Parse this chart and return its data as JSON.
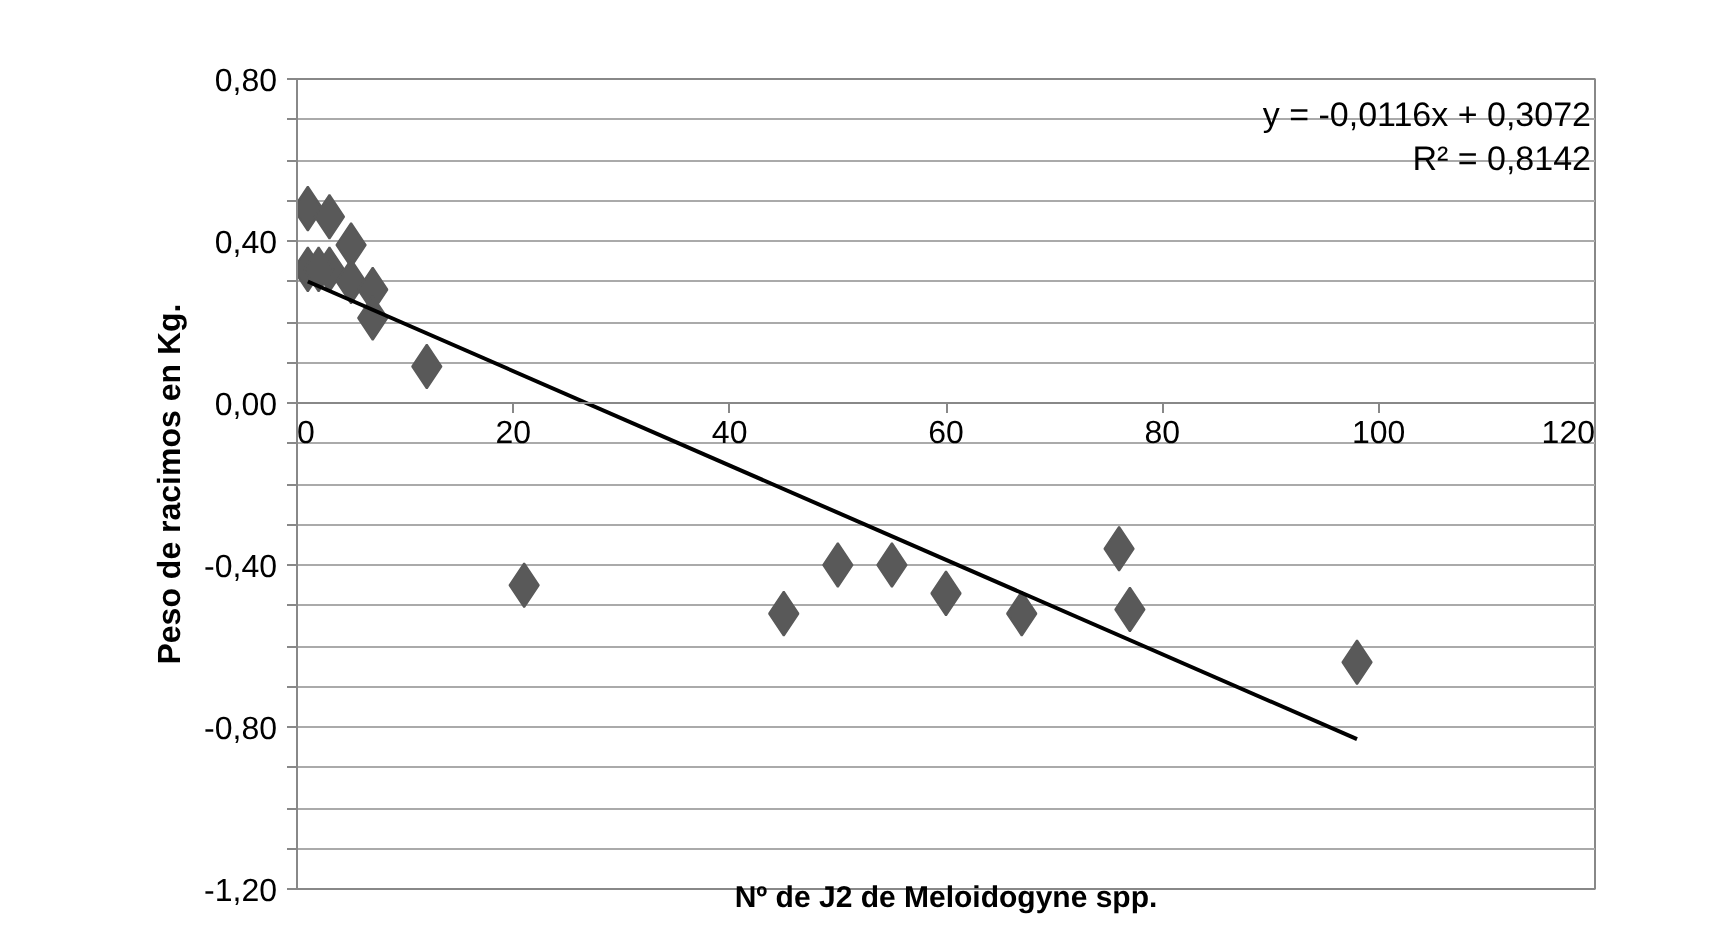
{
  "chart_data": {
    "type": "scatter",
    "xlabel": "Nº de J2 de Meloidogyne spp.",
    "ylabel": "Peso de racimos en Kg.",
    "annotations": [
      "y = -0,0116x + 0,3072",
      "R² = 0,8142"
    ],
    "series": [
      {
        "color": "#595959",
        "marker": "diamond",
        "x": [
          1,
          3,
          5,
          1,
          3,
          2,
          5,
          7,
          7,
          12,
          21,
          45,
          50,
          55,
          60,
          67,
          76,
          77,
          98
        ],
        "values": [
          0.48,
          0.46,
          0.39,
          0.33,
          0.33,
          0.33,
          0.3,
          0.28,
          0.21,
          0.09,
          -0.45,
          -0.52,
          -0.4,
          -0.4,
          -0.47,
          -0.52,
          -0.36,
          -0.51,
          -0.64
        ]
      },
      {
        "type": "line",
        "color": "#000000",
        "marker": "none",
        "x": [
          1,
          98
        ],
        "values": [
          0.3,
          -0.83
        ]
      }
    ],
    "xlim": [
      0,
      120
    ],
    "xticks": [
      0,
      20,
      40,
      60,
      80,
      100,
      120
    ],
    "ylim": [
      -1.2,
      0.8
    ],
    "yticks": [
      {
        "value": -1.2,
        "label": "-1,20"
      },
      {
        "value": -1.1,
        "label": null
      },
      {
        "value": -1.0,
        "label": null
      },
      {
        "value": -0.9,
        "label": null
      },
      {
        "value": -0.8,
        "label": "-0,80"
      },
      {
        "value": -0.7,
        "label": null
      },
      {
        "value": -0.6,
        "label": null
      },
      {
        "value": -0.5,
        "label": null
      },
      {
        "value": -0.4,
        "label": "-0,40"
      },
      {
        "value": -0.3,
        "label": null
      },
      {
        "value": -0.2,
        "label": null
      },
      {
        "value": -0.1,
        "label": null
      },
      {
        "value": 0,
        "label": "0,00"
      },
      {
        "value": 0.1,
        "label": null
      },
      {
        "value": 0.2,
        "label": null
      },
      {
        "value": 0.3,
        "label": null
      },
      {
        "value": 0.4,
        "label": "0,40"
      },
      {
        "value": 0.5,
        "label": null
      },
      {
        "value": 0.6,
        "label": null
      },
      {
        "value": 0.7,
        "label": null
      },
      {
        "value": 0.8,
        "label": "0,80"
      }
    ],
    "grid": "y"
  }
}
